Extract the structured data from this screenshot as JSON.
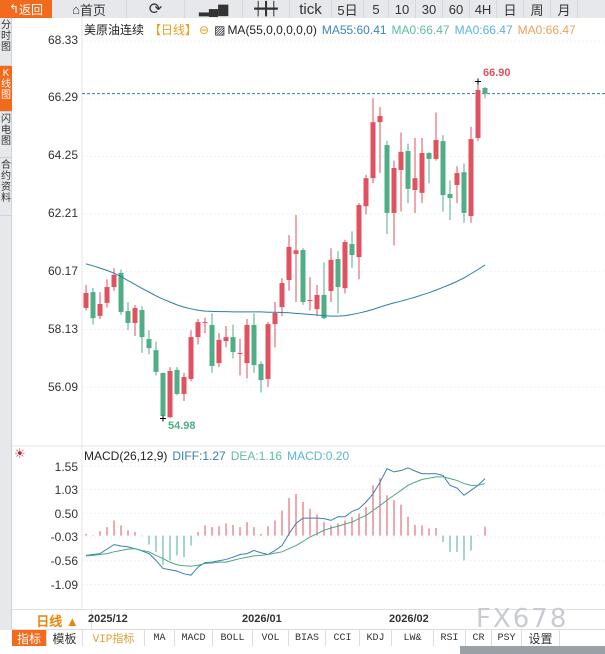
{
  "toolbar": {
    "back": "返回",
    "home": "首页",
    "refresh_icon": "refresh-icon",
    "chart_icon": "bar-chart-icon",
    "candle_icon": "candlestick-icon",
    "periods": [
      "tick",
      "5日",
      "5",
      "10",
      "30",
      "60",
      "4H",
      "日",
      "周",
      "月"
    ]
  },
  "side_tabs": [
    {
      "label": "分时图",
      "active": false
    },
    {
      "label": "K线图",
      "active": true
    },
    {
      "label": "闪电图",
      "active": false
    },
    {
      "label": "合约资料",
      "active": false
    }
  ],
  "legend": {
    "instrument": "美原油连续",
    "period": "【日线】",
    "ma_label": "MA(55,0,0,0,0,0)",
    "ma55": "MA55:60.41",
    "ma0a": "MA0:66.47",
    "ma0b": "MA0:66.47",
    "ma0c": "MA0:66.47"
  },
  "price_axis": [
    "68.33",
    "66.29",
    "64.25",
    "62.21",
    "60.17",
    "58.13",
    "56.09"
  ],
  "markers": {
    "high": "66.90",
    "low": "54.98",
    "last_price": 66.47
  },
  "macd_legend": {
    "title": "MACD(26,12,9)",
    "diff": "DIFF:1.27",
    "dea": "DEA:1.16",
    "macd": "MACD:0.20"
  },
  "macd_axis": [
    "1.55",
    "1.03",
    "0.50",
    "-0.03",
    "-0.56",
    "-1.09"
  ],
  "dates": [
    "2025/12",
    "2026/01",
    "2026/02"
  ],
  "period_selector": "日线 ▲",
  "watermark": "FX678",
  "indicator_tabs": [
    "指标",
    "模板",
    "VIP指标",
    "MA",
    "MACD",
    "BOLL",
    "VOL",
    "BIAS",
    "CCI",
    "KDJ",
    "LW&",
    "RSI",
    "CR",
    "PSY",
    "设置"
  ],
  "colors": {
    "up": "#e0525f",
    "down": "#4fae86",
    "ma55": "#2a7fa8",
    "diff": "#3b7fb0",
    "dea": "#4aa888",
    "accent": "#f26a1b",
    "lastline": "#2a7fa8"
  },
  "chart_data": {
    "type": "candlestick",
    "ylim": [
      54.5,
      68.6
    ],
    "candles": [
      [
        58.89,
        59.7,
        58.8,
        59.42
      ],
      [
        59.45,
        59.6,
        58.3,
        58.53
      ],
      [
        58.61,
        59.45,
        58.5,
        59.03
      ],
      [
        59.07,
        59.9,
        58.9,
        59.63
      ],
      [
        59.63,
        60.3,
        59.5,
        60.06
      ],
      [
        60.13,
        60.25,
        58.65,
        58.75
      ],
      [
        58.78,
        59.1,
        58.1,
        58.36
      ],
      [
        58.36,
        59.0,
        57.9,
        58.89
      ],
      [
        58.82,
        58.95,
        57.3,
        57.86
      ],
      [
        57.79,
        58.1,
        57.25,
        57.47
      ],
      [
        57.4,
        57.7,
        56.5,
        56.63
      ],
      [
        56.59,
        56.6,
        54.98,
        55.07
      ],
      [
        55.03,
        56.8,
        55.0,
        56.66
      ],
      [
        56.7,
        56.8,
        55.8,
        55.85
      ],
      [
        55.85,
        56.6,
        55.6,
        56.45
      ],
      [
        56.38,
        58.1,
        56.3,
        57.86
      ],
      [
        57.86,
        58.5,
        57.6,
        58.39
      ],
      [
        58.39,
        58.55,
        58.0,
        58.39
      ],
      [
        58.29,
        58.7,
        56.6,
        56.84
      ],
      [
        56.94,
        58.0,
        56.8,
        57.76
      ],
      [
        57.72,
        58.25,
        57.5,
        57.86
      ],
      [
        57.86,
        58.3,
        57.1,
        57.33
      ],
      [
        57.3,
        57.8,
        56.5,
        57.3
      ],
      [
        56.94,
        58.5,
        56.4,
        58.29
      ],
      [
        58.29,
        58.7,
        56.6,
        56.87
      ],
      [
        56.91,
        57.0,
        55.9,
        56.34
      ],
      [
        56.38,
        58.4,
        56.1,
        58.32
      ],
      [
        58.32,
        59.1,
        57.5,
        58.71
      ],
      [
        58.92,
        59.95,
        58.6,
        59.77
      ],
      [
        59.88,
        61.47,
        59.5,
        61.05
      ],
      [
        60.8,
        62.18,
        59.1,
        60.93
      ],
      [
        60.94,
        61.0,
        59.0,
        59.1
      ],
      [
        59.17,
        59.98,
        58.8,
        59.17
      ],
      [
        58.85,
        59.7,
        58.6,
        59.35
      ],
      [
        59.35,
        60.5,
        58.5,
        58.53
      ],
      [
        59.49,
        61.0,
        59.1,
        60.59
      ],
      [
        60.62,
        60.9,
        58.7,
        59.63
      ],
      [
        59.59,
        61.3,
        59.4,
        61.22
      ],
      [
        61.15,
        61.6,
        60.3,
        60.76
      ],
      [
        60.69,
        62.6,
        59.9,
        62.53
      ],
      [
        62.49,
        63.6,
        62.2,
        63.48
      ],
      [
        63.48,
        66.3,
        63.3,
        65.46
      ],
      [
        65.46,
        65.99,
        63.66,
        65.68
      ],
      [
        64.65,
        64.8,
        61.5,
        62.25
      ],
      [
        62.25,
        64.1,
        61.1,
        63.84
      ],
      [
        63.77,
        65.1,
        62.3,
        64.41
      ],
      [
        64.44,
        64.7,
        62.6,
        63.1
      ],
      [
        63.06,
        64.9,
        62.25,
        63.48
      ],
      [
        62.96,
        64.9,
        62.6,
        64.37
      ],
      [
        64.37,
        64.4,
        63.3,
        64.16
      ],
      [
        64.16,
        65.8,
        64.1,
        64.83
      ],
      [
        64.79,
        65.0,
        62.3,
        62.88
      ],
      [
        62.92,
        63.4,
        62.0,
        62.78
      ],
      [
        63.24,
        63.9,
        62.6,
        63.66
      ],
      [
        63.69,
        64.0,
        61.9,
        62.25
      ],
      [
        62.14,
        65.3,
        61.9,
        64.86
      ],
      [
        64.9,
        66.9,
        64.8,
        66.6
      ],
      [
        66.67,
        66.7,
        66.3,
        66.47
      ]
    ],
    "ma55": [
      60.45,
      60.38,
      60.3,
      60.22,
      60.12,
      60.0,
      59.86,
      59.72,
      59.58,
      59.45,
      59.32,
      59.2,
      59.1,
      59.0,
      58.92,
      58.86,
      58.81,
      58.78,
      58.77,
      58.76,
      58.76,
      58.75,
      58.75,
      58.75,
      58.75,
      58.75,
      58.74,
      58.74,
      58.73,
      58.72,
      58.7,
      58.68,
      58.66,
      58.64,
      58.62,
      58.6,
      58.6,
      58.62,
      58.66,
      58.71,
      58.77,
      58.84,
      58.92,
      59.0,
      59.07,
      59.13,
      59.2,
      59.27,
      59.35,
      59.43,
      59.52,
      59.62,
      59.72,
      59.83,
      59.95,
      60.1,
      60.25,
      60.41
    ],
    "macd": {
      "ylim": [
        -1.25,
        1.7
      ],
      "diff": [
        -0.44,
        -0.42,
        -0.4,
        -0.3,
        -0.2,
        -0.23,
        -0.25,
        -0.29,
        -0.34,
        -0.4,
        -0.55,
        -0.73,
        -0.76,
        -0.79,
        -0.85,
        -0.88,
        -0.7,
        -0.6,
        -0.59,
        -0.56,
        -0.53,
        -0.48,
        -0.42,
        -0.4,
        -0.33,
        -0.38,
        -0.42,
        -0.33,
        -0.22,
        0.04,
        0.27,
        0.39,
        0.39,
        0.39,
        0.38,
        0.34,
        0.42,
        0.42,
        0.54,
        0.6,
        0.75,
        0.93,
        1.19,
        1.49,
        1.42,
        1.45,
        1.51,
        1.44,
        1.38,
        1.38,
        1.38,
        1.34,
        1.12,
        1.06,
        0.9,
        1.01,
        1.12,
        1.27
      ],
      "dea": [
        -0.45,
        -0.44,
        -0.42,
        -0.4,
        -0.36,
        -0.33,
        -0.3,
        -0.29,
        -0.33,
        -0.36,
        -0.44,
        -0.51,
        -0.59,
        -0.65,
        -0.67,
        -0.68,
        -0.66,
        -0.62,
        -0.61,
        -0.59,
        -0.59,
        -0.55,
        -0.51,
        -0.48,
        -0.45,
        -0.44,
        -0.42,
        -0.39,
        -0.36,
        -0.29,
        -0.22,
        -0.13,
        -0.03,
        0.04,
        0.12,
        0.17,
        0.21,
        0.26,
        0.3,
        0.38,
        0.45,
        0.56,
        0.67,
        0.79,
        0.9,
        1.01,
        1.12,
        1.19,
        1.25,
        1.28,
        1.31,
        1.31,
        1.27,
        1.23,
        1.16,
        1.12,
        1.12,
        1.16
      ],
      "hist": [
        0.04,
        0.01,
        0.1,
        0.19,
        0.34,
        0.23,
        0.12,
        0.08,
        -0.01,
        -0.2,
        -0.36,
        -0.65,
        -0.55,
        -0.44,
        -0.48,
        -0.22,
        0.08,
        0.23,
        0.19,
        0.21,
        0.27,
        0.24,
        0.19,
        0.3,
        0.19,
        0.04,
        0.21,
        0.34,
        0.56,
        0.84,
        0.93,
        0.75,
        0.6,
        0.47,
        0.3,
        0.23,
        0.27,
        0.34,
        0.42,
        0.49,
        0.64,
        1.12,
        1.28,
        0.9,
        0.79,
        0.69,
        0.42,
        0.24,
        0.23,
        0.16,
        0.17,
        -0.14,
        -0.36,
        -0.36,
        -0.55,
        -0.33,
        0.01,
        0.2
      ]
    }
  }
}
